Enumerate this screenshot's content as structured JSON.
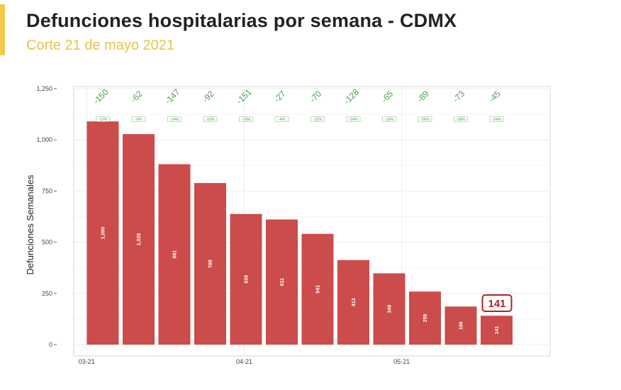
{
  "header": {
    "title": "Defunciones hospitalarias por semana - CDMX",
    "subtitle": "Corte 21 de mayo 2021",
    "accent_color": "#f2c94c"
  },
  "chart_data": {
    "type": "bar",
    "ylabel": "Defunciones Semanales",
    "xlabel": "",
    "ylim": [
      0,
      1250
    ],
    "yticks": [
      0,
      250,
      500,
      750,
      1000,
      1250
    ],
    "ytick_labels": [
      "0",
      "250",
      "500",
      "750",
      "1,000",
      "1,250"
    ],
    "xtick_labels": [
      "03-21",
      "04-21",
      "05-21"
    ],
    "bar_color": "#cc4b4b",
    "grid": true,
    "values": [
      1090,
      1028,
      881,
      789,
      638,
      611,
      541,
      413,
      348,
      259,
      186,
      141
    ],
    "value_labels": [
      "1,090",
      "1,028",
      "881",
      "789",
      "638",
      "611",
      "541",
      "413",
      "348",
      "259",
      "186",
      "141"
    ],
    "changes": [
      "-150",
      "-62",
      "-147",
      "-92",
      "-151",
      "-27",
      "-70",
      "-128",
      "-65",
      "-89",
      "-73",
      "-45"
    ],
    "change_pcts": [
      "-12%",
      "-6%",
      "-14%",
      "-10%",
      "-19%",
      "-4%",
      "-11%",
      "-24%",
      "-16%",
      "-26%",
      "-28%",
      "-24%"
    ],
    "change_color": "#4a9e4a",
    "highlight_label": "141",
    "highlight_color": "#b22222"
  }
}
